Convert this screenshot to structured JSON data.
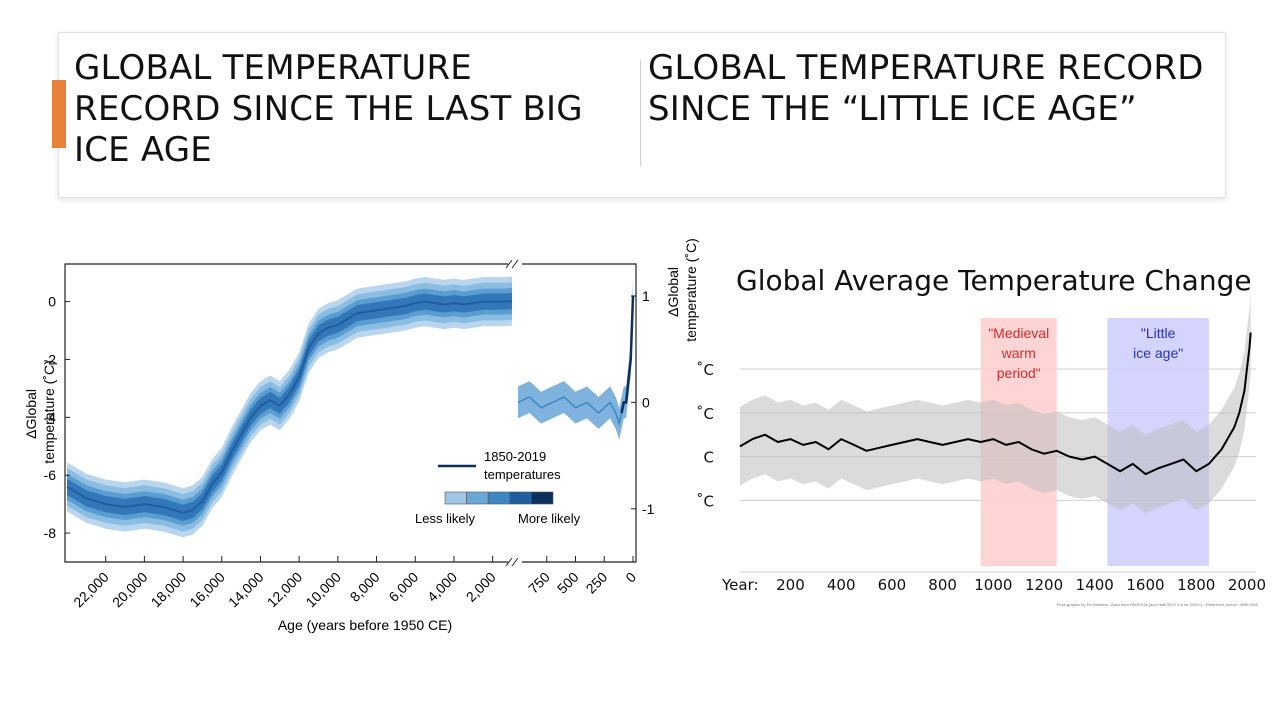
{
  "slide": {
    "title_left": "GLOBAL TEMPERATURE RECORD SINCE THE LAST BIG ICE AGE",
    "title_right": "GLOBAL TEMPERATURE RECORD SINCE THE “LITTLE ICE AGE”"
  },
  "chart_data": [
    {
      "type": "area",
      "xlabel": "Age (years before 1950 CE)",
      "ylabel_left": "ΔGlobal temperature (˚C)",
      "ylabel_right": "ΔGlobal temperature (˚C)",
      "left_panel": {
        "x_ticks": [
          "22,000",
          "20,000",
          "18,000",
          "16,000",
          "14,000",
          "12,000",
          "10,000",
          "8,000",
          "6,000",
          "4,000",
          "2,000"
        ],
        "y_ticks": [
          "0",
          "-2",
          "-4",
          "-6",
          "-8"
        ],
        "xlim": [
          24000,
          1000
        ],
        "ylim": [
          -9,
          1.3
        ],
        "series": [
          {
            "x": [
              24000,
              23000,
              22000,
              21000,
              20000,
              19000,
              18500,
              18000,
              17500,
              17000,
              16500,
              16000,
              15500,
              15000,
              14500,
              14000,
              13500,
              13000,
              12500,
              12000,
              11500,
              11000,
              10500,
              10000,
              9500,
              9000,
              8500,
              8000,
              7500,
              7000,
              6500,
              6000,
              5500,
              5000,
              4500,
              4000,
              3500,
              3000,
              2500,
              2000,
              1500,
              1000
            ],
            "y": [
              -6.4,
              -6.8,
              -7.0,
              -7.1,
              -7.0,
              -7.1,
              -7.2,
              -7.3,
              -7.2,
              -6.9,
              -6.3,
              -5.9,
              -5.2,
              -4.6,
              -4.0,
              -3.6,
              -3.4,
              -3.6,
              -3.2,
              -2.6,
              -1.6,
              -1.1,
              -0.9,
              -0.8,
              -0.6,
              -0.4,
              -0.35,
              -0.3,
              -0.25,
              -0.2,
              -0.15,
              -0.05,
              0.0,
              -0.05,
              -0.1,
              -0.05,
              -0.1,
              -0.05,
              0.0,
              0.0,
              0.0,
              0.02
            ]
          }
        ]
      },
      "right_panel": {
        "x_ticks": [
          "750",
          "500",
          "250",
          "0"
        ],
        "y_ticks": [
          "1",
          "0",
          "-1"
        ],
        "xlim": [
          1000,
          0
        ],
        "ylim": [
          -1.5,
          1.3
        ],
        "series": [
          {
            "x": [
              1000,
              900,
              800,
              700,
              600,
              500,
              400,
              300,
              200,
              150,
              120,
              100,
              80,
              60,
              40,
              20,
              0
            ],
            "y": [
              0.0,
              0.05,
              -0.05,
              0.0,
              0.05,
              -0.05,
              0.0,
              -0.1,
              0.0,
              -0.1,
              -0.2,
              -0.1,
              0.0,
              0.0,
              0.2,
              0.4,
              1.0
            ]
          }
        ]
      },
      "legend": {
        "line_label": "1850-2019 temperatures",
        "less_label": "Less likely",
        "more_label": "More likely",
        "shades": [
          "#9fc6e4",
          "#6aa8d6",
          "#3d86c4",
          "#1f5e9e",
          "#0d2f5e"
        ]
      },
      "colors": {
        "band": "#6aa8d6",
        "median": "#1f5e9e",
        "instrumental": "#0d2f5e"
      }
    },
    {
      "type": "line",
      "title": "Global Average Temperature Change",
      "x_label_prefix": "Year:",
      "x_ticks": [
        200,
        400,
        600,
        800,
        1000,
        1200,
        1400,
        1600,
        1800,
        2000
      ],
      "xlim": [
        1,
        2020
      ],
      "ylim": [
        -0.75,
        0.95
      ],
      "y_tick_values": [
        0.6,
        0.3,
        0.0,
        -0.3
      ],
      "y_tick_labels": [
        "˚C",
        "˚C",
        "C",
        "˚C"
      ],
      "annotations": [
        {
          "text": "\"Medieval warm period\"",
          "lines": [
            "\"Medieval",
            "warm",
            "period\""
          ],
          "x_start": 950,
          "x_end": 1250,
          "color": "#ffcccc",
          "text_color": "#d62b2b"
        },
        {
          "text": "\"Little ice age\"",
          "lines": [
            "\"Little",
            "ice age\""
          ],
          "x_start": 1450,
          "x_end": 1850,
          "color": "#ccccff",
          "text_color": "#2433b8"
        }
      ],
      "series": [
        {
          "x": [
            1,
            50,
            100,
            150,
            200,
            250,
            300,
            350,
            400,
            450,
            500,
            550,
            600,
            650,
            700,
            750,
            800,
            850,
            900,
            950,
            1000,
            1050,
            1100,
            1150,
            1200,
            1250,
            1300,
            1350,
            1400,
            1450,
            1500,
            1550,
            1600,
            1650,
            1700,
            1750,
            1800,
            1850,
            1900,
            1950,
            1970,
            1990,
            2000,
            2010,
            2015
          ],
          "y": [
            0.07,
            0.12,
            0.15,
            0.1,
            0.12,
            0.08,
            0.1,
            0.05,
            0.12,
            0.08,
            0.04,
            0.06,
            0.08,
            0.1,
            0.12,
            0.1,
            0.08,
            0.1,
            0.12,
            0.1,
            0.12,
            0.08,
            0.1,
            0.05,
            0.02,
            0.04,
            0.0,
            -0.02,
            0.0,
            -0.05,
            -0.1,
            -0.05,
            -0.12,
            -0.08,
            -0.05,
            -0.02,
            -0.1,
            -0.05,
            0.05,
            0.2,
            0.3,
            0.45,
            0.6,
            0.75,
            0.85
          ]
        }
      ],
      "footnote": "From graphic by Ed Hawkins - Data from PAGES2k (and HadCRUT 4.6 for 2001+) - Reference period: 1850-1900"
    }
  ]
}
